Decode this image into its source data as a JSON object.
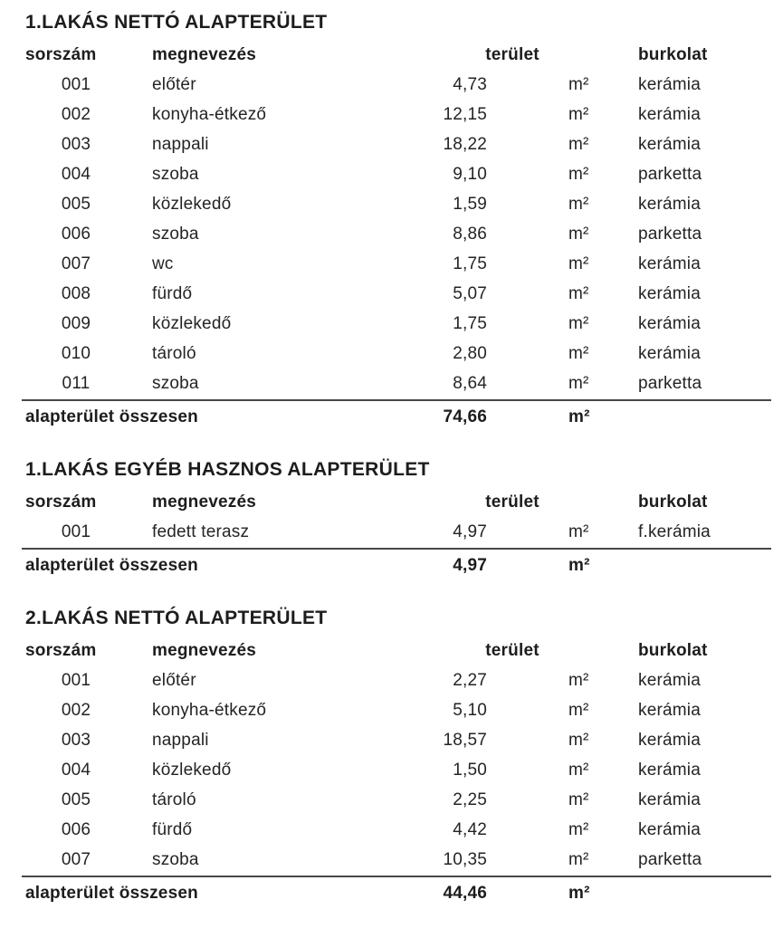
{
  "colors": {
    "background": "#ffffff",
    "text": "#242424",
    "rule": "#474747"
  },
  "columns": {
    "sorszam": "sorszám",
    "megnevezes": "megnevezés",
    "terulet": "terület",
    "burkolat": "burkolat"
  },
  "sections": [
    {
      "title": "1.LAKÁS NETTÓ ALAPTERÜLET",
      "rows": [
        {
          "no": "001",
          "name": "előtér",
          "area": "4,73",
          "unit": "m²",
          "floor": "kerámia"
        },
        {
          "no": "002",
          "name": "konyha-étkező",
          "area": "12,15",
          "unit": "m²",
          "floor": "kerámia"
        },
        {
          "no": "003",
          "name": "nappali",
          "area": "18,22",
          "unit": "m²",
          "floor": "kerámia"
        },
        {
          "no": "004",
          "name": "szoba",
          "area": "9,10",
          "unit": "m²",
          "floor": "parketta"
        },
        {
          "no": "005",
          "name": "közlekedő",
          "area": "1,59",
          "unit": "m²",
          "floor": "kerámia"
        },
        {
          "no": "006",
          "name": "szoba",
          "area": "8,86",
          "unit": "m²",
          "floor": "parketta"
        },
        {
          "no": "007",
          "name": "wc",
          "area": "1,75",
          "unit": "m²",
          "floor": "kerámia"
        },
        {
          "no": "008",
          "name": "fürdő",
          "area": "5,07",
          "unit": "m²",
          "floor": "kerámia"
        },
        {
          "no": "009",
          "name": "közlekedő",
          "area": "1,75",
          "unit": "m²",
          "floor": "kerámia"
        },
        {
          "no": "010",
          "name": "tároló",
          "area": "2,80",
          "unit": "m²",
          "floor": "kerámia"
        },
        {
          "no": "011",
          "name": "szoba",
          "area": "8,64",
          "unit": "m²",
          "floor": "parketta"
        }
      ],
      "total": {
        "label": "alapterület összesen",
        "value": "74,66",
        "unit": "m²"
      }
    },
    {
      "title": "1.LAKÁS EGYÉB HASZNOS ALAPTERÜLET",
      "rows": [
        {
          "no": "001",
          "name": "fedett terasz",
          "area": "4,97",
          "unit": "m²",
          "floor": "f.kerámia"
        }
      ],
      "total": {
        "label": "alapterület összesen",
        "value": "4,97",
        "unit": "m²"
      }
    },
    {
      "title": "2.LAKÁS NETTÓ ALAPTERÜLET",
      "rows": [
        {
          "no": "001",
          "name": "előtér",
          "area": "2,27",
          "unit": "m²",
          "floor": "kerámia"
        },
        {
          "no": "002",
          "name": "konyha-étkező",
          "area": "5,10",
          "unit": "m²",
          "floor": "kerámia"
        },
        {
          "no": "003",
          "name": "nappali",
          "area": "18,57",
          "unit": "m²",
          "floor": "kerámia"
        },
        {
          "no": "004",
          "name": "közlekedő",
          "area": "1,50",
          "unit": "m²",
          "floor": "kerámia"
        },
        {
          "no": "005",
          "name": "tároló",
          "area": "2,25",
          "unit": "m²",
          "floor": "kerámia"
        },
        {
          "no": "006",
          "name": "fürdő",
          "area": "4,42",
          "unit": "m²",
          "floor": "kerámia"
        },
        {
          "no": "007",
          "name": "szoba",
          "area": "10,35",
          "unit": "m²",
          "floor": "parketta"
        }
      ],
      "total": {
        "label": "alapterület összesen",
        "value": "44,46",
        "unit": "m²"
      }
    }
  ]
}
